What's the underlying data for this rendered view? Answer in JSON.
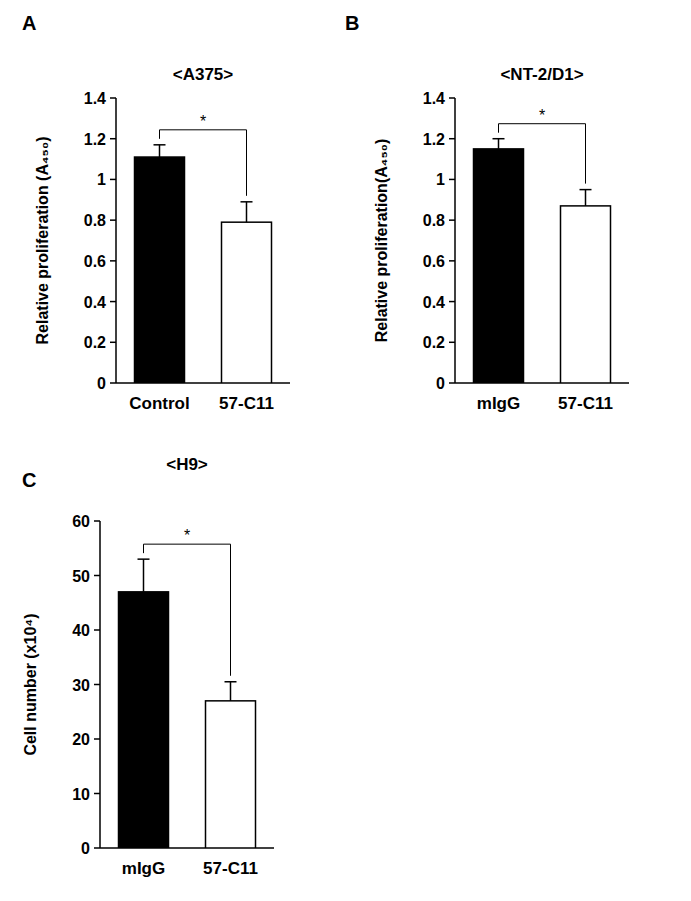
{
  "chart_data": [
    {
      "type": "bar",
      "panel": "A",
      "title": "<A375>",
      "y_label": "Relative proliferation (A₄₅₀)",
      "categories": [
        "Control",
        "57-C11"
      ],
      "values": [
        1.11,
        0.79
      ],
      "errors": [
        0.06,
        0.1
      ],
      "colors": [
        "#000000",
        "#ffffff"
      ],
      "ylim": [
        0,
        1.4
      ],
      "yticks": [
        0,
        0.2,
        0.4,
        0.6,
        0.8,
        1,
        1.2,
        1.4
      ],
      "annotations": [
        "*"
      ]
    },
    {
      "type": "bar",
      "panel": "B",
      "title": "<NT-2/D1>",
      "y_label": "Relative proliferation(A₄₅₀)",
      "categories": [
        "mIgG",
        "57-C11"
      ],
      "values": [
        1.15,
        0.87
      ],
      "errors": [
        0.05,
        0.08
      ],
      "colors": [
        "#000000",
        "#ffffff"
      ],
      "ylim": [
        0,
        1.4
      ],
      "yticks": [
        0,
        0.2,
        0.4,
        0.6,
        0.8,
        1,
        1.2,
        1.4
      ],
      "annotations": [
        "*"
      ]
    },
    {
      "type": "bar",
      "panel": "C",
      "title": "<H9>",
      "y_label": "Cell number (x10⁴)",
      "categories": [
        "mIgG",
        "57-C11"
      ],
      "values": [
        47,
        27
      ],
      "errors": [
        6,
        3.5
      ],
      "colors": [
        "#000000",
        "#ffffff"
      ],
      "ylim": [
        0,
        60
      ],
      "yticks": [
        0,
        10,
        20,
        30,
        40,
        50,
        60
      ],
      "annotations": [
        "*"
      ]
    }
  ]
}
